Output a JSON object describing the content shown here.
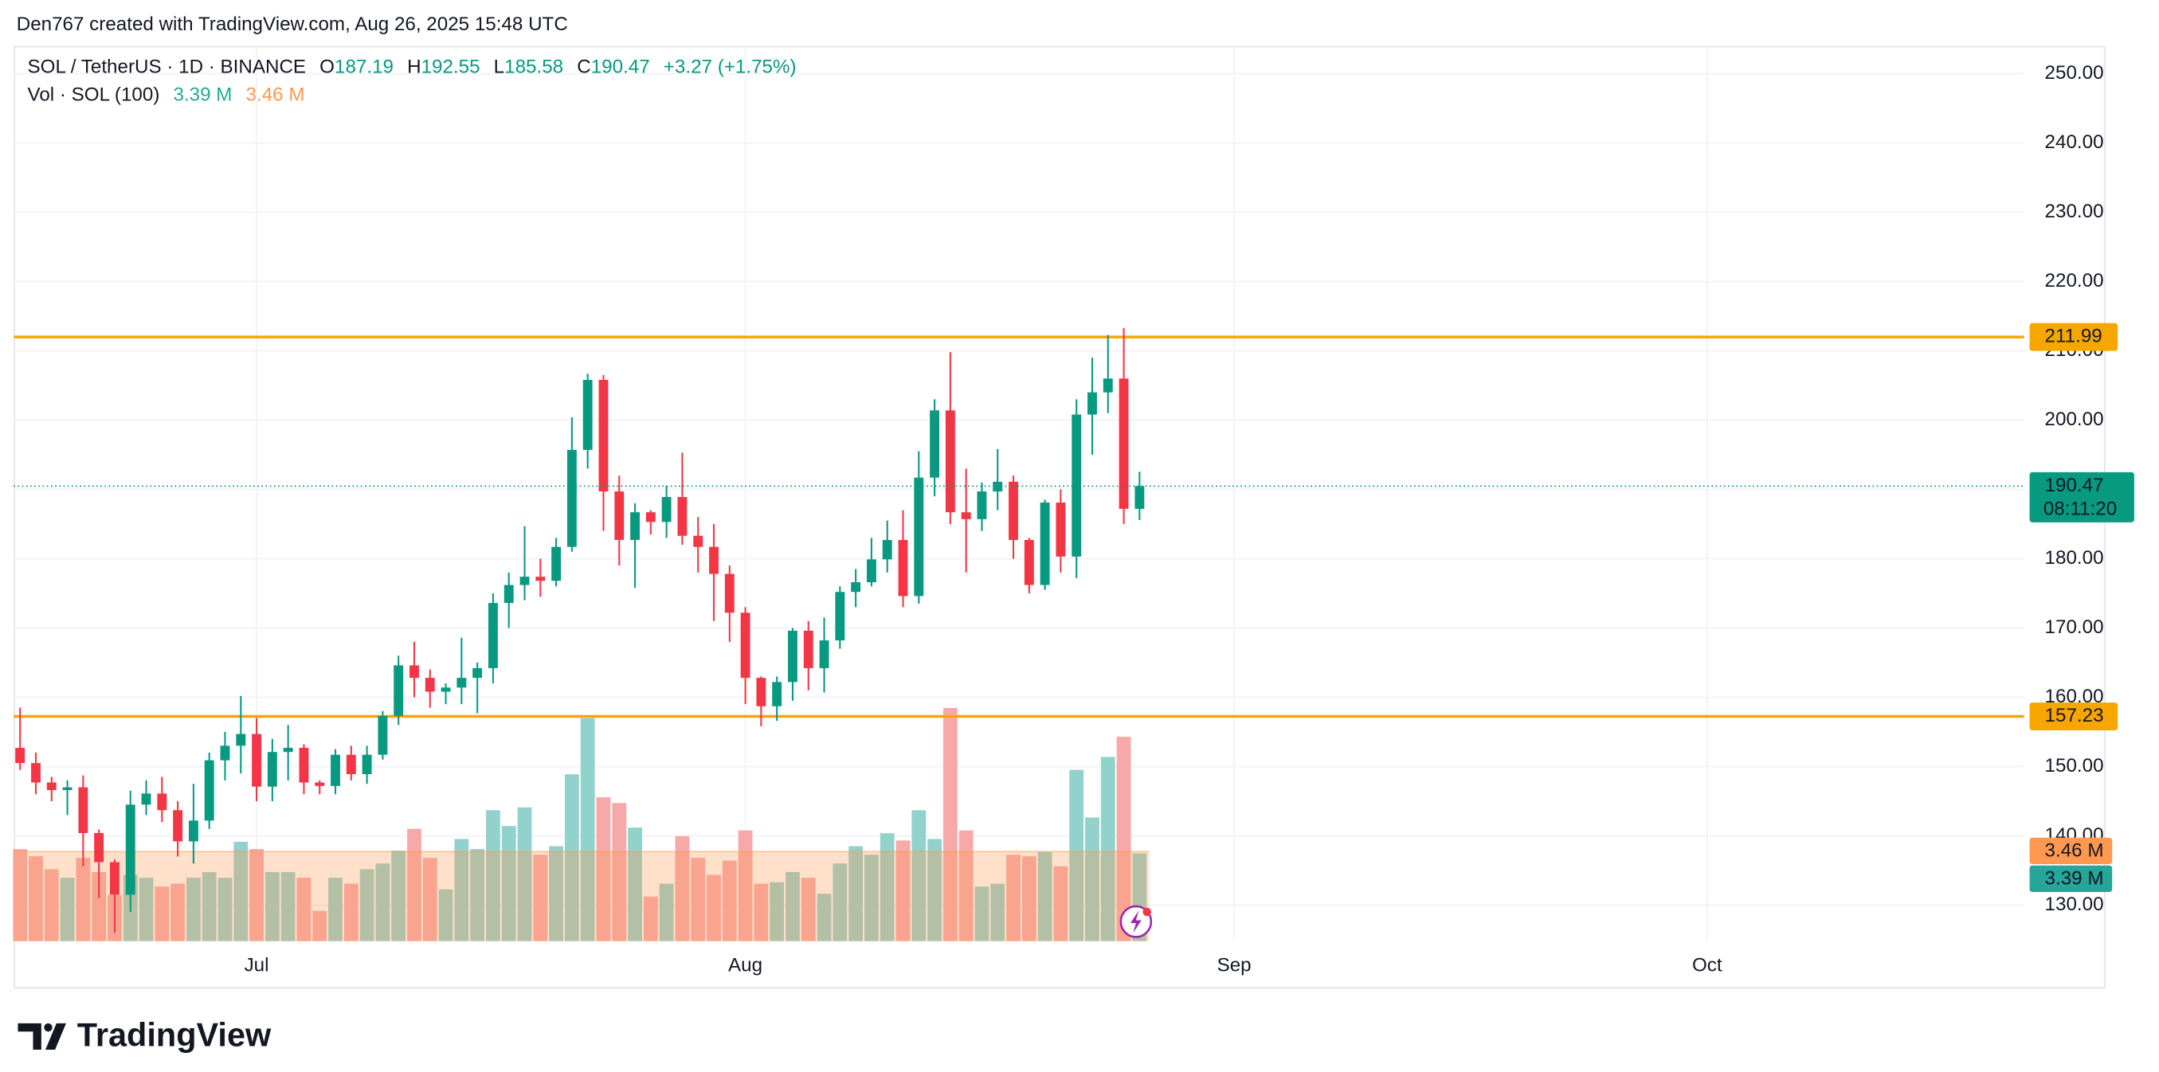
{
  "caption": "Den767 created with TradingView.com, Aug 26, 2025 15:48 UTC",
  "brand": "TradingView",
  "chart_data": {
    "type": "candlestick",
    "symbol": "SOL / TetherUS · 1D · BINANCE",
    "ohlc_labels": [
      "O",
      "H",
      "L",
      "C"
    ],
    "change_label": "+3.27 (+1.75%)",
    "countdown": "08:11:20",
    "up_color": "#089981",
    "down_color": "#f23645",
    "grid": true,
    "x": [
      0,
      1,
      2,
      3,
      4,
      5,
      6,
      7,
      8,
      9,
      10,
      11,
      12,
      13,
      14,
      15,
      16,
      17,
      18,
      19,
      20,
      21,
      22,
      23,
      24,
      25,
      26,
      27,
      28,
      29,
      30,
      31,
      32,
      33,
      34,
      35,
      36,
      37,
      38,
      39,
      40,
      41,
      42,
      43,
      44,
      45,
      46,
      47,
      48,
      49,
      50,
      51,
      52,
      53,
      54,
      55,
      56,
      57,
      58,
      59,
      60,
      61,
      62,
      63,
      64,
      65,
      66,
      67,
      68,
      69,
      70,
      71
    ],
    "open": [
      152.7,
      150.5,
      147.7,
      146.6,
      147.0,
      140.4,
      136.2,
      131.5,
      144.5,
      146.1,
      143.7,
      139.2,
      142.2,
      150.9,
      153.0,
      154.7,
      147.1,
      152.1,
      152.7,
      147.7,
      147.2,
      151.7,
      148.9,
      151.7,
      157.3,
      164.6,
      162.8,
      160.8,
      161.4,
      162.8,
      164.2,
      173.6,
      176.2,
      177.4,
      176.8,
      181.7,
      195.7,
      205.8,
      189.7,
      182.7,
      186.7,
      185.3,
      188.9,
      183.3,
      181.7,
      177.8,
      172.2,
      162.8,
      158.7,
      162.2,
      169.6,
      164.2,
      168.2,
      175.2,
      176.6,
      179.9,
      182.7,
      174.6,
      191.7,
      201.4,
      186.7,
      185.7,
      189.7,
      191.1,
      182.7,
      176.2,
      188.1,
      180.3,
      200.8,
      204.0,
      206.0,
      187.19
    ],
    "high": [
      158.5,
      152,
      148.5,
      148,
      148.7,
      140.9,
      136.6,
      146.5,
      148,
      148.5,
      145,
      147.5,
      152,
      155,
      160.2,
      157,
      154,
      156,
      153.2,
      148,
      152.5,
      153,
      153,
      158,
      166,
      168,
      164,
      162,
      168.6,
      165,
      175,
      178,
      184.7,
      180,
      183,
      200.4,
      206.7,
      206.5,
      192,
      188,
      187,
      190.5,
      195.3,
      186,
      185,
      179,
      173,
      163,
      163,
      170,
      171,
      171.5,
      176,
      178.5,
      183,
      185.5,
      187,
      195.5,
      203,
      209.8,
      193,
      191,
      195.8,
      192,
      183,
      188.5,
      190,
      203,
      209,
      212.3,
      213.3,
      192.55
    ],
    "low": [
      149.5,
      146,
      145,
      143,
      135.6,
      131,
      126,
      129,
      143,
      142,
      137,
      136,
      141,
      148,
      149,
      145,
      145,
      148,
      146,
      146,
      146,
      148,
      147.5,
      151,
      156,
      160,
      158.5,
      159,
      159,
      157.7,
      162,
      170,
      174,
      174.5,
      176,
      181,
      193,
      184,
      179,
      175.8,
      183.5,
      183,
      182,
      178,
      171,
      168,
      159,
      155.8,
      156.6,
      159.5,
      161,
      160.7,
      167,
      173,
      176,
      178,
      173,
      173.5,
      189,
      185,
      178,
      184,
      187,
      180,
      175,
      175.5,
      178,
      177.2,
      195,
      201,
      185,
      185.58
    ],
    "close": [
      150.5,
      147.7,
      146.6,
      147.0,
      140.4,
      136.2,
      131.5,
      144.5,
      146.1,
      143.7,
      139.2,
      142.2,
      150.9,
      153.0,
      154.7,
      147.1,
      152.1,
      152.7,
      147.7,
      147.2,
      151.7,
      148.9,
      151.7,
      157.3,
      164.6,
      162.8,
      160.8,
      161.4,
      162.8,
      164.2,
      173.6,
      176.2,
      177.4,
      176.8,
      181.7,
      195.7,
      205.8,
      189.7,
      182.7,
      186.7,
      185.3,
      188.9,
      183.3,
      181.7,
      177.8,
      172.2,
      162.8,
      158.7,
      162.2,
      169.6,
      164.2,
      168.2,
      175.2,
      176.6,
      179.9,
      182.7,
      174.6,
      191.7,
      201.4,
      186.7,
      185.7,
      189.7,
      191.1,
      182.7,
      176.2,
      188.1,
      180.3,
      200.8,
      204.0,
      206.0,
      187.19,
      190.47
    ],
    "xlim": [
      -0.4,
      127.1
    ],
    "xticks": [
      {
        "value": 15,
        "label": "Jul"
      },
      {
        "value": 46,
        "label": "Aug"
      },
      {
        "value": 77,
        "label": "Sep"
      },
      {
        "value": 107,
        "label": "Oct"
      }
    ],
    "ylim": [
      124.8,
      254.0
    ],
    "yticks": [
      {
        "value": 130,
        "label": "130.00"
      },
      {
        "value": 140,
        "label": "140.00"
      },
      {
        "value": 150,
        "label": "150.00"
      },
      {
        "value": 160,
        "label": "160.00"
      },
      {
        "value": 170,
        "label": "170.00"
      },
      {
        "value": 180,
        "label": "180.00"
      },
      {
        "value": 190,
        "label": "190.00"
      },
      {
        "value": 200,
        "label": "200.00"
      },
      {
        "value": 210,
        "label": "210.00"
      },
      {
        "value": 220,
        "label": "220.00"
      },
      {
        "value": 230,
        "label": "230.00"
      },
      {
        "value": 240,
        "label": "240.00"
      },
      {
        "value": 250,
        "label": "250.00"
      }
    ],
    "hlines": [
      {
        "value": 211.99,
        "color": "#f7a600"
      },
      {
        "value": 157.23,
        "color": "#f7a600"
      }
    ],
    "volume": {
      "name": "Vol · SOL (100)",
      "up_color": "#92d2cc",
      "down_color": "#f7a9a9",
      "ma_color": "#ff9850",
      "ylim": [
        0,
        34.6
      ],
      "values": [
        3.56,
        3.28,
        2.78,
        2.45,
        3.22,
        2.67,
        1.78,
        2.56,
        2.45,
        2.11,
        2.22,
        2.45,
        2.67,
        2.45,
        3.84,
        3.56,
        2.67,
        2.67,
        2.45,
        1.17,
        2.45,
        2.22,
        2.78,
        3.0,
        3.5,
        4.34,
        3.22,
        2.0,
        3.95,
        3.56,
        5.06,
        4.45,
        5.17,
        3.34,
        3.67,
        6.45,
        8.62,
        5.56,
        5.34,
        4.39,
        1.72,
        2.22,
        4.06,
        3.22,
        2.56,
        3.11,
        4.28,
        2.22,
        2.28,
        2.67,
        2.45,
        1.83,
        3.0,
        3.67,
        3.34,
        4.17,
        3.89,
        5.06,
        3.95,
        9.01,
        4.28,
        2.11,
        2.22,
        3.34,
        3.28,
        3.45,
        2.89,
        6.62,
        4.78,
        7.12,
        7.9,
        3.39
      ],
      "last_label": "3.39 M",
      "ma": 3.46,
      "ma_label": "3.46 M"
    }
  }
}
